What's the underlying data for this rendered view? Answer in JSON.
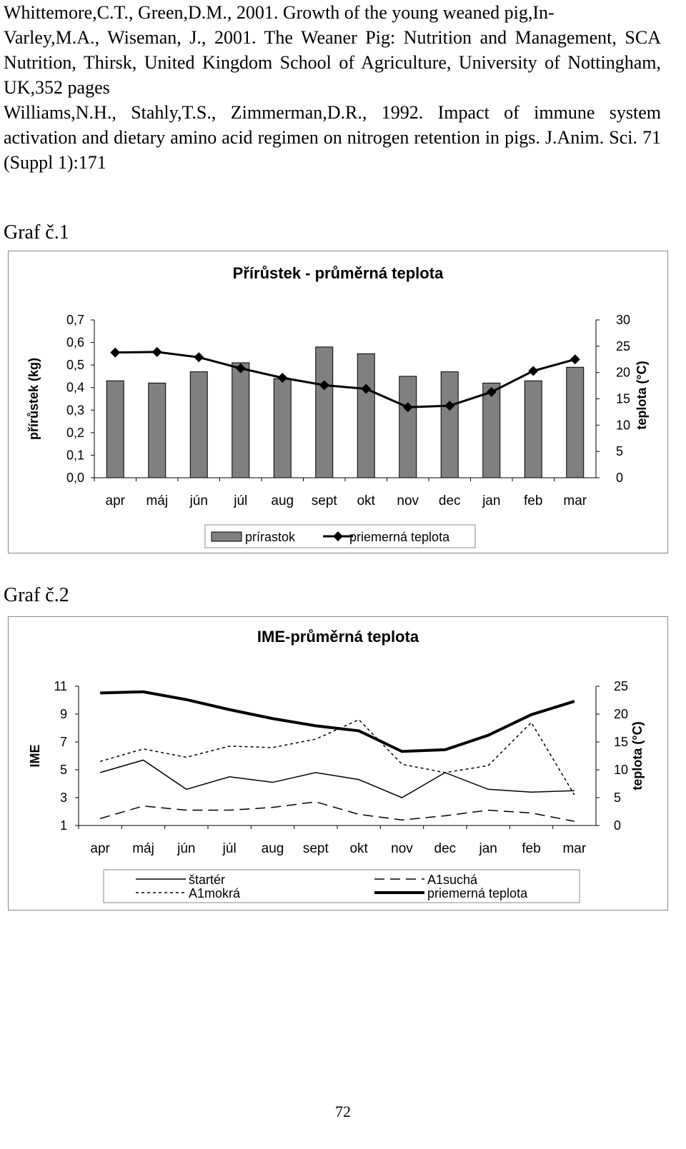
{
  "references": [
    "Whittemore,C.T., Green,D.M., 2001.  Growth of the young weaned pig,In- Varley,M.A., Wiseman, J., 2001. The Weaner Pig: Nutrition and Management, SCA Nutrition, Thirsk, United Kingdom School of Agriculture, University of Nottingham, UK,352 pages",
    "Williams,N.H., Stahly,T.S., Zimmerman,D.R., 1992. Impact of immune system activation and dietary amino acid regimen on nitrogen retention in pigs. J.Anim. Sci. 71 (Suppl 1):171"
  ],
  "reference_first_line": "Whittemore,C.T., Green,D.M., 2001.  Growth of the young weaned pig,In-",
  "reference_rest": "Varley,M.A., Wiseman, J., 2001. The Weaner Pig: Nutrition and Management, SCA Nutrition, Thirsk, United Kingdom School of Agriculture, University of Nottingham, UK,352 pages",
  "graf1_label": "Graf č.1",
  "graf2_label": "Graf č.2",
  "page_number": "72",
  "chart_data": [
    {
      "type": "bar",
      "title": "Přírůstek - průměrná teplota",
      "categories": [
        "apr",
        "máj",
        "jún",
        "júl",
        "aug",
        "sept",
        "okt",
        "nov",
        "dec",
        "jan",
        "feb",
        "mar"
      ],
      "ylabel": "přírůstek (kg)",
      "y2label": "teplota (°C)",
      "ylim": [
        0,
        0.7
      ],
      "y2lim": [
        0,
        30
      ],
      "yticks": [
        "0,0",
        "0,1",
        "0,2",
        "0,3",
        "0,4",
        "0,5",
        "0,6",
        "0,7"
      ],
      "y2ticks": [
        "0",
        "5",
        "10",
        "15",
        "20",
        "25",
        "30"
      ],
      "grid": false,
      "legend_position": "bottom",
      "bar_color": "#808080",
      "series": [
        {
          "name": "prírastok",
          "kind": "bar",
          "axis": "left",
          "values": [
            0.43,
            0.42,
            0.47,
            0.51,
            0.44,
            0.58,
            0.55,
            0.45,
            0.47,
            0.42,
            0.43,
            0.49
          ]
        },
        {
          "name": "priemerná teplota",
          "kind": "line",
          "axis": "right",
          "marker": "diamond",
          "values": [
            23.8,
            23.9,
            22.9,
            20.8,
            19.0,
            17.6,
            16.9,
            13.4,
            13.7,
            16.3,
            20.3,
            22.5
          ]
        }
      ]
    },
    {
      "type": "line",
      "title": "IME-průměrná teplota",
      "categories": [
        "apr",
        "máj",
        "jún",
        "júl",
        "aug",
        "sept",
        "okt",
        "nov",
        "dec",
        "jan",
        "feb",
        "mar"
      ],
      "ylabel": "IME",
      "y2label": "teplota (°C)",
      "ylim": [
        1,
        11
      ],
      "y2lim": [
        0,
        25
      ],
      "yticks": [
        "1",
        "3",
        "5",
        "7",
        "9",
        "11"
      ],
      "y2ticks": [
        "0",
        "5",
        "10",
        "15",
        "20",
        "25"
      ],
      "grid": false,
      "legend_position": "bottom",
      "series": [
        {
          "name": "štartér",
          "axis": "left",
          "style": "solid",
          "values": [
            4.8,
            5.7,
            3.6,
            4.5,
            4.1,
            4.8,
            4.3,
            3.0,
            4.8,
            3.6,
            3.4,
            3.5
          ]
        },
        {
          "name": "A1suchá",
          "axis": "left",
          "style": "dashed",
          "values": [
            1.5,
            2.4,
            2.1,
            2.1,
            2.3,
            2.7,
            1.8,
            1.4,
            1.7,
            2.1,
            1.9,
            1.3
          ]
        },
        {
          "name": "A1mokrá",
          "axis": "left",
          "style": "dotted",
          "values": [
            5.6,
            6.5,
            5.9,
            6.7,
            6.6,
            7.2,
            8.6,
            5.4,
            4.8,
            5.3,
            8.4,
            3.2
          ]
        },
        {
          "name": "priemerná teplota",
          "axis": "right",
          "style": "thick",
          "values": [
            23.8,
            24.0,
            22.6,
            20.8,
            19.2,
            17.9,
            17.0,
            13.3,
            13.6,
            16.2,
            19.9,
            22.3
          ]
        }
      ]
    }
  ]
}
